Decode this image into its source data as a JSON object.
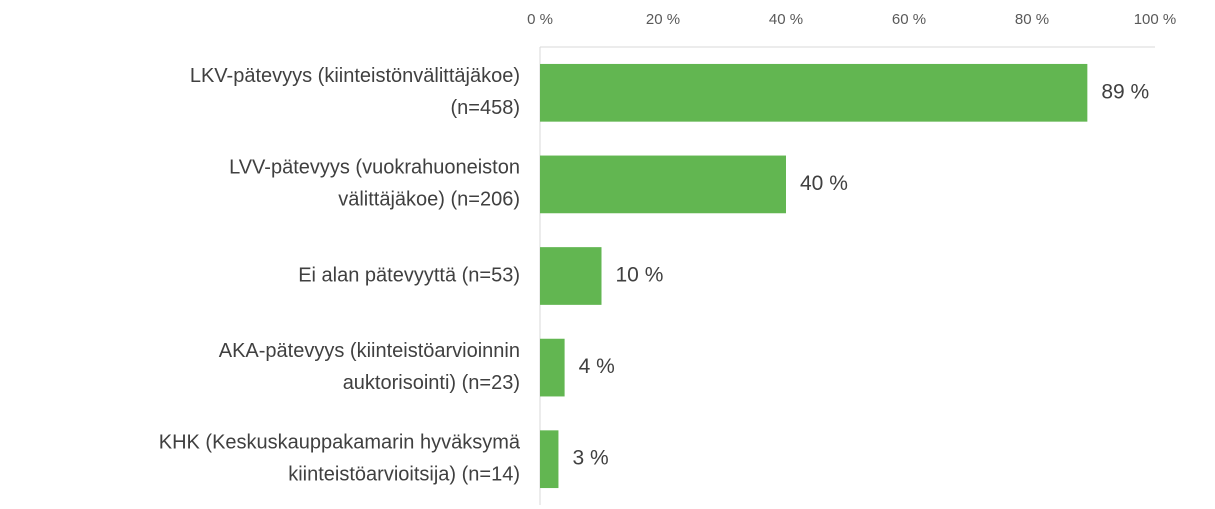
{
  "chart_data": {
    "type": "hbar",
    "categories": [
      [
        "LKV-pätevyys (kiinteistönvälittäjäkoe)",
        "(n=458)"
      ],
      [
        "LVV-pätevyys (vuokrahuoneiston",
        "välittäjäkoe) (n=206)"
      ],
      [
        "Ei alan pätevyyttä (n=53)"
      ],
      [
        "AKA-pätevyys (kiinteistöarvioinnin",
        "auktorisointi) (n=23)"
      ],
      [
        "KHK (Keskuskauppakamarin hyväksymä",
        "kiinteistöarvioitsija) (n=14)"
      ]
    ],
    "values": [
      89,
      40,
      10,
      4,
      3
    ],
    "value_labels": [
      "89 %",
      "40 %",
      "10 %",
      "4 %",
      "3 %"
    ],
    "color": "#62b651",
    "xlim": [
      0,
      100
    ],
    "xticks": [
      {
        "value": 0,
        "label": "0 %"
      },
      {
        "value": 20,
        "label": "20 %"
      },
      {
        "value": 40,
        "label": "40 %"
      },
      {
        "value": 60,
        "label": "60 %"
      },
      {
        "value": 80,
        "label": "80 %"
      },
      {
        "value": 100,
        "label": "100 %"
      }
    ],
    "grid": false
  }
}
